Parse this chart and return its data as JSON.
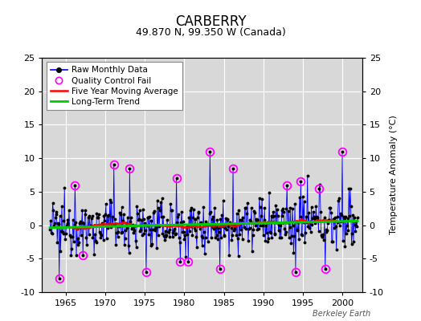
{
  "title": "CARBERRY",
  "subtitle": "49.870 N, 99.350 W (Canada)",
  "ylabel": "Temperature Anomaly (°C)",
  "ylim": [
    -10,
    25
  ],
  "yticks": [
    -10,
    -5,
    0,
    5,
    10,
    15,
    20,
    25
  ],
  "xlim": [
    1962.0,
    2002.5
  ],
  "xticks": [
    1965,
    1970,
    1975,
    1980,
    1985,
    1990,
    1995,
    2000
  ],
  "background_color": "#d8d8d8",
  "raw_color": "#0000ff",
  "ma_color": "#ff0000",
  "trend_color": "#00cc00",
  "qc_color": "#ff00ff",
  "marker_color": "#000000",
  "title_fontsize": 12,
  "subtitle_fontsize": 9,
  "legend_fontsize": 7.5,
  "tick_fontsize": 8,
  "watermark": "Berkeley Earth"
}
